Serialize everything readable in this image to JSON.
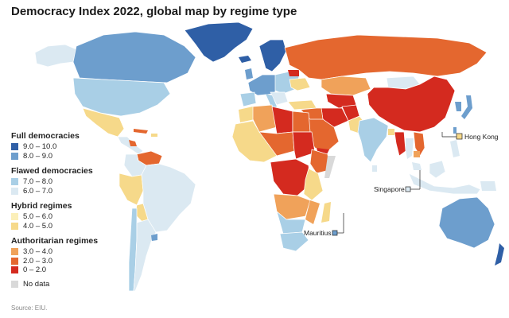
{
  "title": "Democracy Index 2022, global map by regime type",
  "legend": {
    "groups": [
      {
        "title": "Full democracies",
        "items": [
          {
            "label": "9.0 – 10.0",
            "color": "#2f5fa6"
          },
          {
            "label": "8.0 – 9.0",
            "color": "#6d9ecd"
          }
        ]
      },
      {
        "title": "Flawed democracies",
        "items": [
          {
            "label": "7.0 – 8.0",
            "color": "#a9cfe6"
          },
          {
            "label": "6.0 – 7.0",
            "color": "#dbe9f2"
          }
        ]
      },
      {
        "title": "Hybrid regimes",
        "items": [
          {
            "label": "5.0 – 6.0",
            "color": "#fbefb9"
          },
          {
            "label": "4.0 – 5.0",
            "color": "#f6d98a"
          }
        ]
      },
      {
        "title": "Authoritarian regimes",
        "items": [
          {
            "label": "3.0 – 4.0",
            "color": "#f0a25a"
          },
          {
            "label": "2.0 – 3.0",
            "color": "#e4672f"
          },
          {
            "label": "0 – 2.0",
            "color": "#d42a1f"
          }
        ]
      }
    ],
    "no_data": {
      "label": "No data",
      "color": "#d9d9d9"
    }
  },
  "callouts": {
    "hong_kong": "Hong Kong",
    "singapore": "Singapore",
    "mauritius": "Mauritius"
  },
  "source": "Source: EIU."
}
